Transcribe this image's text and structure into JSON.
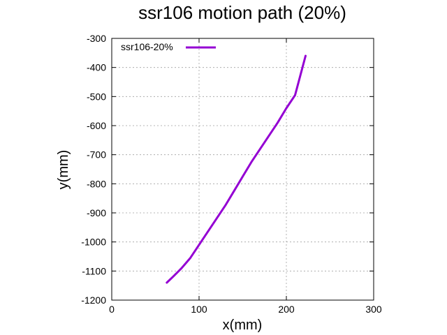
{
  "chart_data": {
    "type": "line",
    "title": "ssr106 motion path (20%)",
    "xlabel": "x(mm)",
    "ylabel": "y(mm)",
    "xlim": [
      0,
      300
    ],
    "ylim": [
      -1200,
      -300
    ],
    "x_ticks": [
      0,
      100,
      200,
      300
    ],
    "y_ticks": [
      -1200,
      -1100,
      -1000,
      -900,
      -800,
      -700,
      -600,
      -500,
      -400,
      -300
    ],
    "grid": true,
    "legend_position": "top-left",
    "series": [
      {
        "name": "ssr106-20%",
        "color": "#9400d3",
        "x": [
          63,
          70,
          80,
          90,
          100,
          110,
          120,
          130,
          140,
          150,
          160,
          170,
          180,
          190,
          200,
          210,
          222
        ],
        "y": [
          -1140,
          -1120,
          -1090,
          -1055,
          -1010,
          -965,
          -920,
          -875,
          -825,
          -775,
          -725,
          -680,
          -635,
          -590,
          -540,
          -495,
          -360
        ]
      }
    ]
  }
}
